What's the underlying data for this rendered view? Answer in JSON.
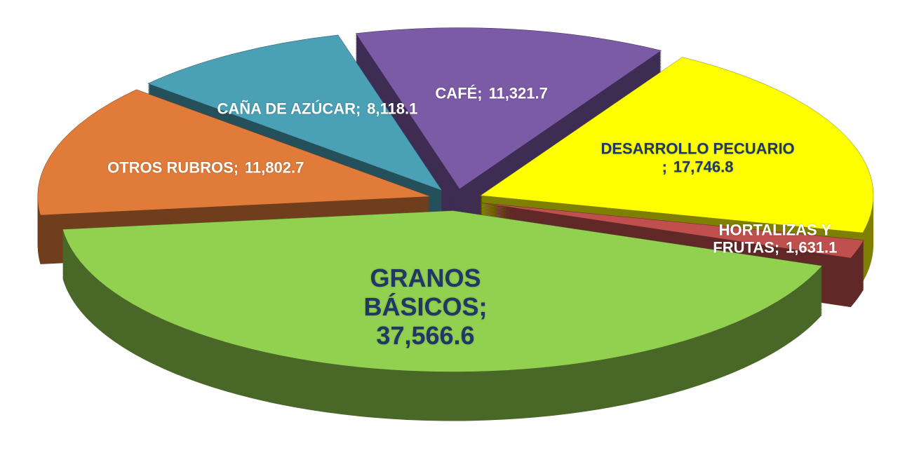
{
  "chart_data": {
    "type": "pie",
    "categories": [
      "GRANOS BÁSICOS;",
      "OTROS RUBROS;",
      "CAÑA DE AZÚCAR;",
      "CAFÉ;",
      "DESARROLLO PECUARIO ;",
      "HORTALIZAS Y FRUTAS;"
    ],
    "values": [
      37566.6,
      11802.7,
      8118.1,
      11321.7,
      17746.8,
      1631.1
    ],
    "value_labels": [
      "37,566.6",
      "11,802.7",
      "8,118.1",
      "11,321.7",
      "17,746.8",
      "1,631.1"
    ],
    "colors": [
      "#92d050",
      "#e07b39",
      "#4aa0b5",
      "#7b5aa6",
      "#ffff00",
      "#c0504d"
    ],
    "label_colors": [
      "#1f3864",
      "#ffffff",
      "#ffffff",
      "#ffffff",
      "#1f3864",
      "#ffffff"
    ]
  }
}
